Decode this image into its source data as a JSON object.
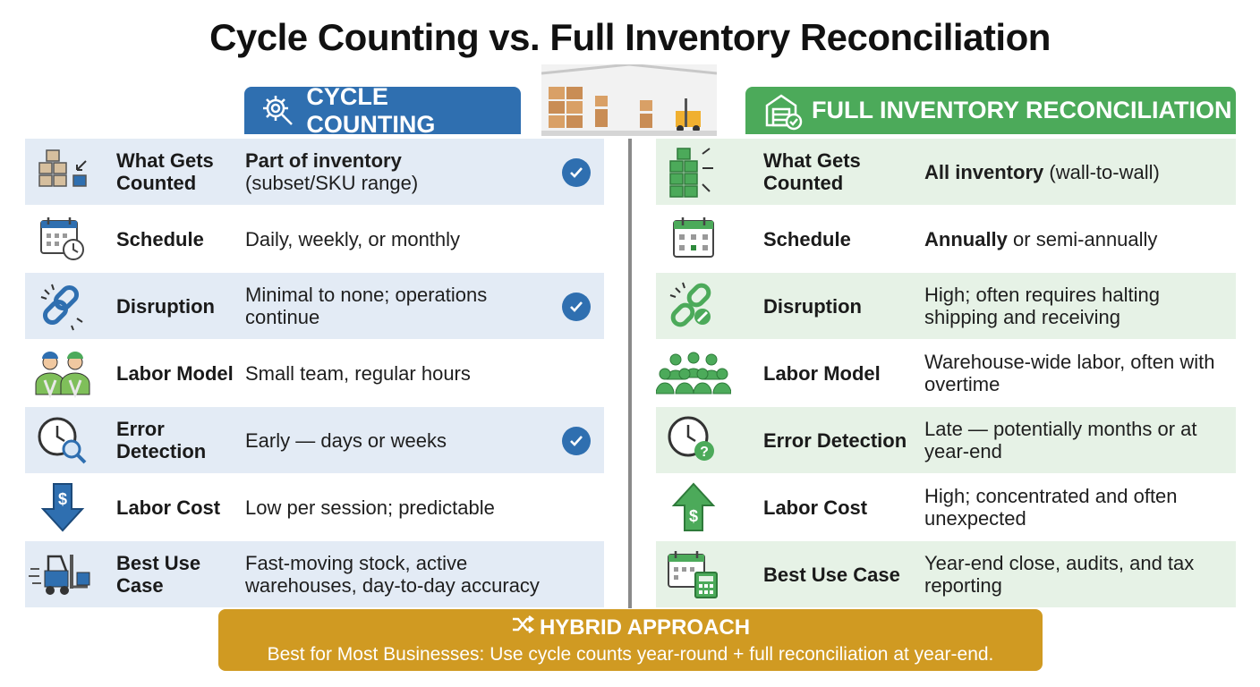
{
  "title": "Cycle Counting vs. Full Inventory Reconciliation",
  "left": {
    "header": "CYCLE COUNTING",
    "header_icon": "gear-magnifier-icon",
    "rows": [
      {
        "label": "What Gets Counted",
        "value_bold": "Part of inventory",
        "value": "(subset/SKU range)",
        "icon": "boxes-inward-icon",
        "checked": true
      },
      {
        "label": "Schedule",
        "value_bold": "",
        "value": "Daily, weekly, or monthly",
        "icon": "calendar-clock-icon",
        "checked": false
      },
      {
        "label": "Disruption",
        "value_bold": "",
        "value": "Minimal to none; operations continue",
        "icon": "chain-link-icon",
        "checked": true
      },
      {
        "label": "Labor Model",
        "value_bold": "",
        "value": "Small team, regular hours",
        "icon": "two-workers-icon",
        "checked": false
      },
      {
        "label": "Error Detection",
        "value_bold": "",
        "value": "Early — days or weeks",
        "icon": "clock-magnifier-icon",
        "checked": true
      },
      {
        "label": "Labor Cost",
        "value_bold": "",
        "value": "Low per session; predictable",
        "icon": "dollar-down-arrow-icon",
        "checked": false
      },
      {
        "label": "Best Use Case",
        "value_bold": "",
        "value": "Fast-moving stock, active warehouses, day-to-day accuracy",
        "icon": "forklift-icon",
        "checked": false
      }
    ]
  },
  "right": {
    "header": "FULL INVENTORY RECONCILIATION",
    "header_icon": "warehouse-check-icon",
    "rows": [
      {
        "label": "What Gets Counted",
        "value_bold": "All inventory",
        "value": "(wall-to-wall)",
        "icon": "boxes-outward-icon"
      },
      {
        "label": "Schedule",
        "value_bold": "Annually",
        "value": "or semi-annually",
        "icon": "calendar-icon"
      },
      {
        "label": "Disruption",
        "value_bold": "",
        "value": "High; often requires halting shipping and receiving",
        "icon": "broken-chain-icon"
      },
      {
        "label": "Labor Model",
        "value_bold": "",
        "value": "Warehouse-wide labor, often with overtime",
        "icon": "worker-crowd-icon"
      },
      {
        "label": "Error Detection",
        "value_bold": "",
        "value": "Late — potentially months or at year-end",
        "icon": "clock-question-icon"
      },
      {
        "label": "Labor Cost",
        "value_bold": "",
        "value": "High; concentrated and often unexpected",
        "icon": "dollar-up-arrow-icon"
      },
      {
        "label": "Best Use Case",
        "value_bold": "",
        "value": "Year-end close, audits, and tax reporting",
        "icon": "calendar-calculator-icon"
      }
    ]
  },
  "hybrid": {
    "title": "HYBRID APPROACH",
    "icon": "shuffle-icon",
    "text": "Best for Most Businesses: Use cycle counts year-round + full reconciliation at year-end."
  },
  "colors": {
    "blue": "#2f6fb0",
    "green": "#4caa5a",
    "gold": "#d09a22",
    "blue_shade": "#e3ebf5",
    "green_shade": "#e6f2e6"
  }
}
